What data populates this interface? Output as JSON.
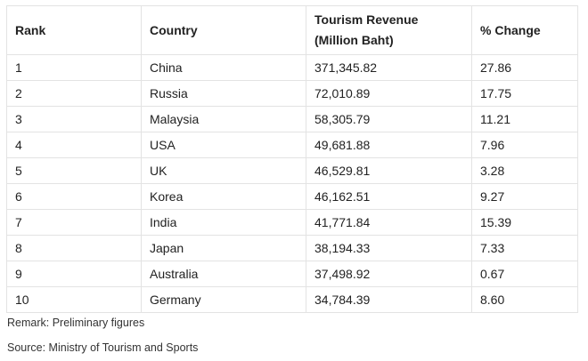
{
  "table": {
    "headers": {
      "rank": "Rank",
      "country": "Country",
      "revenue_line1": "Tourism Revenue",
      "revenue_line2": "(Million Baht)",
      "change": "% Change"
    },
    "rows": [
      {
        "rank": "1",
        "country": "China",
        "revenue": "371,345.82",
        "change": "27.86"
      },
      {
        "rank": "2",
        "country": "Russia",
        "revenue": "72,010.89",
        "change": "17.75"
      },
      {
        "rank": "3",
        "country": "Malaysia",
        "revenue": "58,305.79",
        "change": "11.21"
      },
      {
        "rank": "4",
        "country": "USA",
        "revenue": "49,681.88",
        "change": "7.96"
      },
      {
        "rank": "5",
        "country": "UK",
        "revenue": "46,529.81",
        "change": "3.28"
      },
      {
        "rank": "6",
        "country": "Korea",
        "revenue": "46,162.51",
        "change": "9.27"
      },
      {
        "rank": "7",
        "country": "India",
        "revenue": "41,771.84",
        "change": "15.39"
      },
      {
        "rank": "8",
        "country": "Japan",
        "revenue": "38,194.33",
        "change": "7.33"
      },
      {
        "rank": "9",
        "country": "Australia",
        "revenue": "37,498.92",
        "change": "0.67"
      },
      {
        "rank": "10",
        "country": "Germany",
        "revenue": "34,784.39",
        "change": "8.60"
      }
    ]
  },
  "notes": {
    "remark": "Remark: Preliminary figures",
    "source": "Source: Ministry of Tourism and Sports"
  }
}
